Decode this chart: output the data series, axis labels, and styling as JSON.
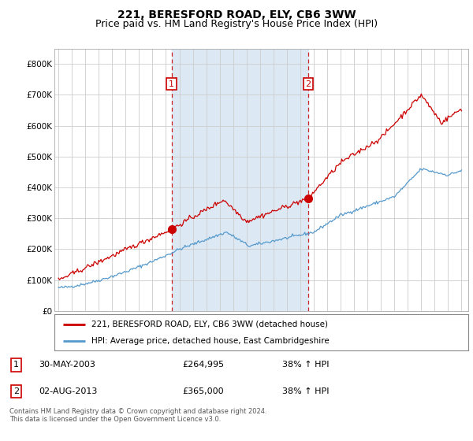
{
  "title": "221, BERESFORD ROAD, ELY, CB6 3WW",
  "subtitle": "Price paid vs. HM Land Registry's House Price Index (HPI)",
  "ylim": [
    0,
    850000
  ],
  "yticks": [
    0,
    100000,
    200000,
    300000,
    400000,
    500000,
    600000,
    700000,
    800000
  ],
  "ytick_labels": [
    "£0",
    "£100K",
    "£200K",
    "£300K",
    "£400K",
    "£500K",
    "£600K",
    "£700K",
    "£800K"
  ],
  "legend_entries": [
    "221, BERESFORD ROAD, ELY, CB6 3WW (detached house)",
    "HPI: Average price, detached house, East Cambridgeshire"
  ],
  "legend_colors": [
    "#cc0000",
    "#5599cc"
  ],
  "shade_color": "#dce9f5",
  "sale1": {
    "date_label": "1",
    "date": "30-MAY-2003",
    "price": 264995,
    "hpi_pct": "38%",
    "hpi_dir": "↑"
  },
  "sale2": {
    "date_label": "2",
    "date": "02-AUG-2013",
    "price": 365000,
    "hpi_pct": "38%",
    "hpi_dir": "↑"
  },
  "footer": "Contains HM Land Registry data © Crown copyright and database right 2024.\nThis data is licensed under the Open Government Licence v3.0.",
  "sale1_x": 2003.416,
  "sale2_x": 2013.583,
  "background_color": "#ffffff",
  "plot_bg_color": "#ffffff",
  "grid_color": "#cccccc",
  "title_fontsize": 10,
  "subtitle_fontsize": 9
}
